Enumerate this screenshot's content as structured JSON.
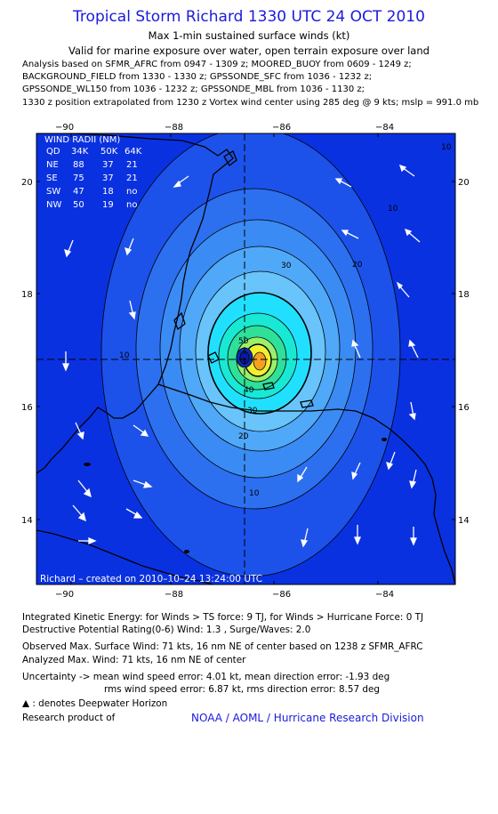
{
  "header": {
    "title": "Tropical Storm Richard 1330 UTC 24 OCT 2010",
    "subtitle": "Max 1-min sustained surface winds (kt)",
    "valid": "Valid for marine exposure over water, open terrain exposure over land",
    "info_lines": [
      "Analysis based on SFMR_AFRC from 0947 - 1309 z; MOORED_BUOY from 0609 - 1249 z;",
      "BACKGROUND_FIELD from 1330 - 1330 z; GPSSONDE_SFC from 1036 - 1232 z;",
      "GPSSONDE_WL150 from 1036 - 1232 z; GPSSONDE_MBL from 1036 - 1130 z;",
      "1330 z position extrapolated from 1230 z Vortex wind center using 285 deg @ 9 kts; mslp = 991.0 mb"
    ]
  },
  "map": {
    "lon_range": [
      -91.0,
      -82.8
    ],
    "lat_range": [
      12.9,
      20.9
    ],
    "lon_ticks": [
      "−90",
      "−88",
      "−86",
      "−84"
    ],
    "lat_ticks": [
      "20",
      "18",
      "16",
      "14"
    ],
    "center": {
      "lon": -86.65,
      "lat": 16.82
    },
    "contour_labels": [
      "10",
      "10",
      "10",
      "20",
      "20",
      "30",
      "30",
      "40",
      "50",
      "10"
    ],
    "colors": {
      "ocean_bg": "#0a31e0",
      "land_line": "#000000",
      "crosshair": "#000000",
      "arrows": "#ffffff"
    },
    "radii_table": {
      "title": "WIND RADII (NM)",
      "headers": [
        "QD",
        "34K",
        "50K",
        "64K"
      ],
      "rows": [
        [
          "NE",
          "88",
          "37",
          "21"
        ],
        [
          "SE",
          "75",
          "37",
          "21"
        ],
        [
          "SW",
          "47",
          "18",
          "no"
        ],
        [
          "NW",
          "50",
          "19",
          "no"
        ]
      ]
    },
    "created": "Richard – created on 2010–10–24 13:24:00 UTC"
  },
  "footer": {
    "ike": "Integrated Kinetic Energy: for Winds > TS force: 9 TJ, for Winds > Hurricane Force: 0 TJ",
    "dpr": "Destructive Potential Rating(0-6) Wind: 1.3 , Surge/Waves: 2.0",
    "observed": "Observed Max. Surface Wind: 71 kts, 16 nm NE of center based on 1238 z SFMR_AFRC",
    "analyzed": "Analyzed Max. Wind: 71 kts, 16 nm NE of center",
    "uncertainty1": "Uncertainty -> mean wind speed error: 4.01 kt, mean direction error: -1.93 deg",
    "uncertainty2": "rms wind speed error: 6.87 kt, rms direction error: 8.57 deg",
    "horizon": ": denotes Deepwater Horizon",
    "research": "Research product of",
    "division": "NOAA / AOML / Hurricane Research Division"
  }
}
